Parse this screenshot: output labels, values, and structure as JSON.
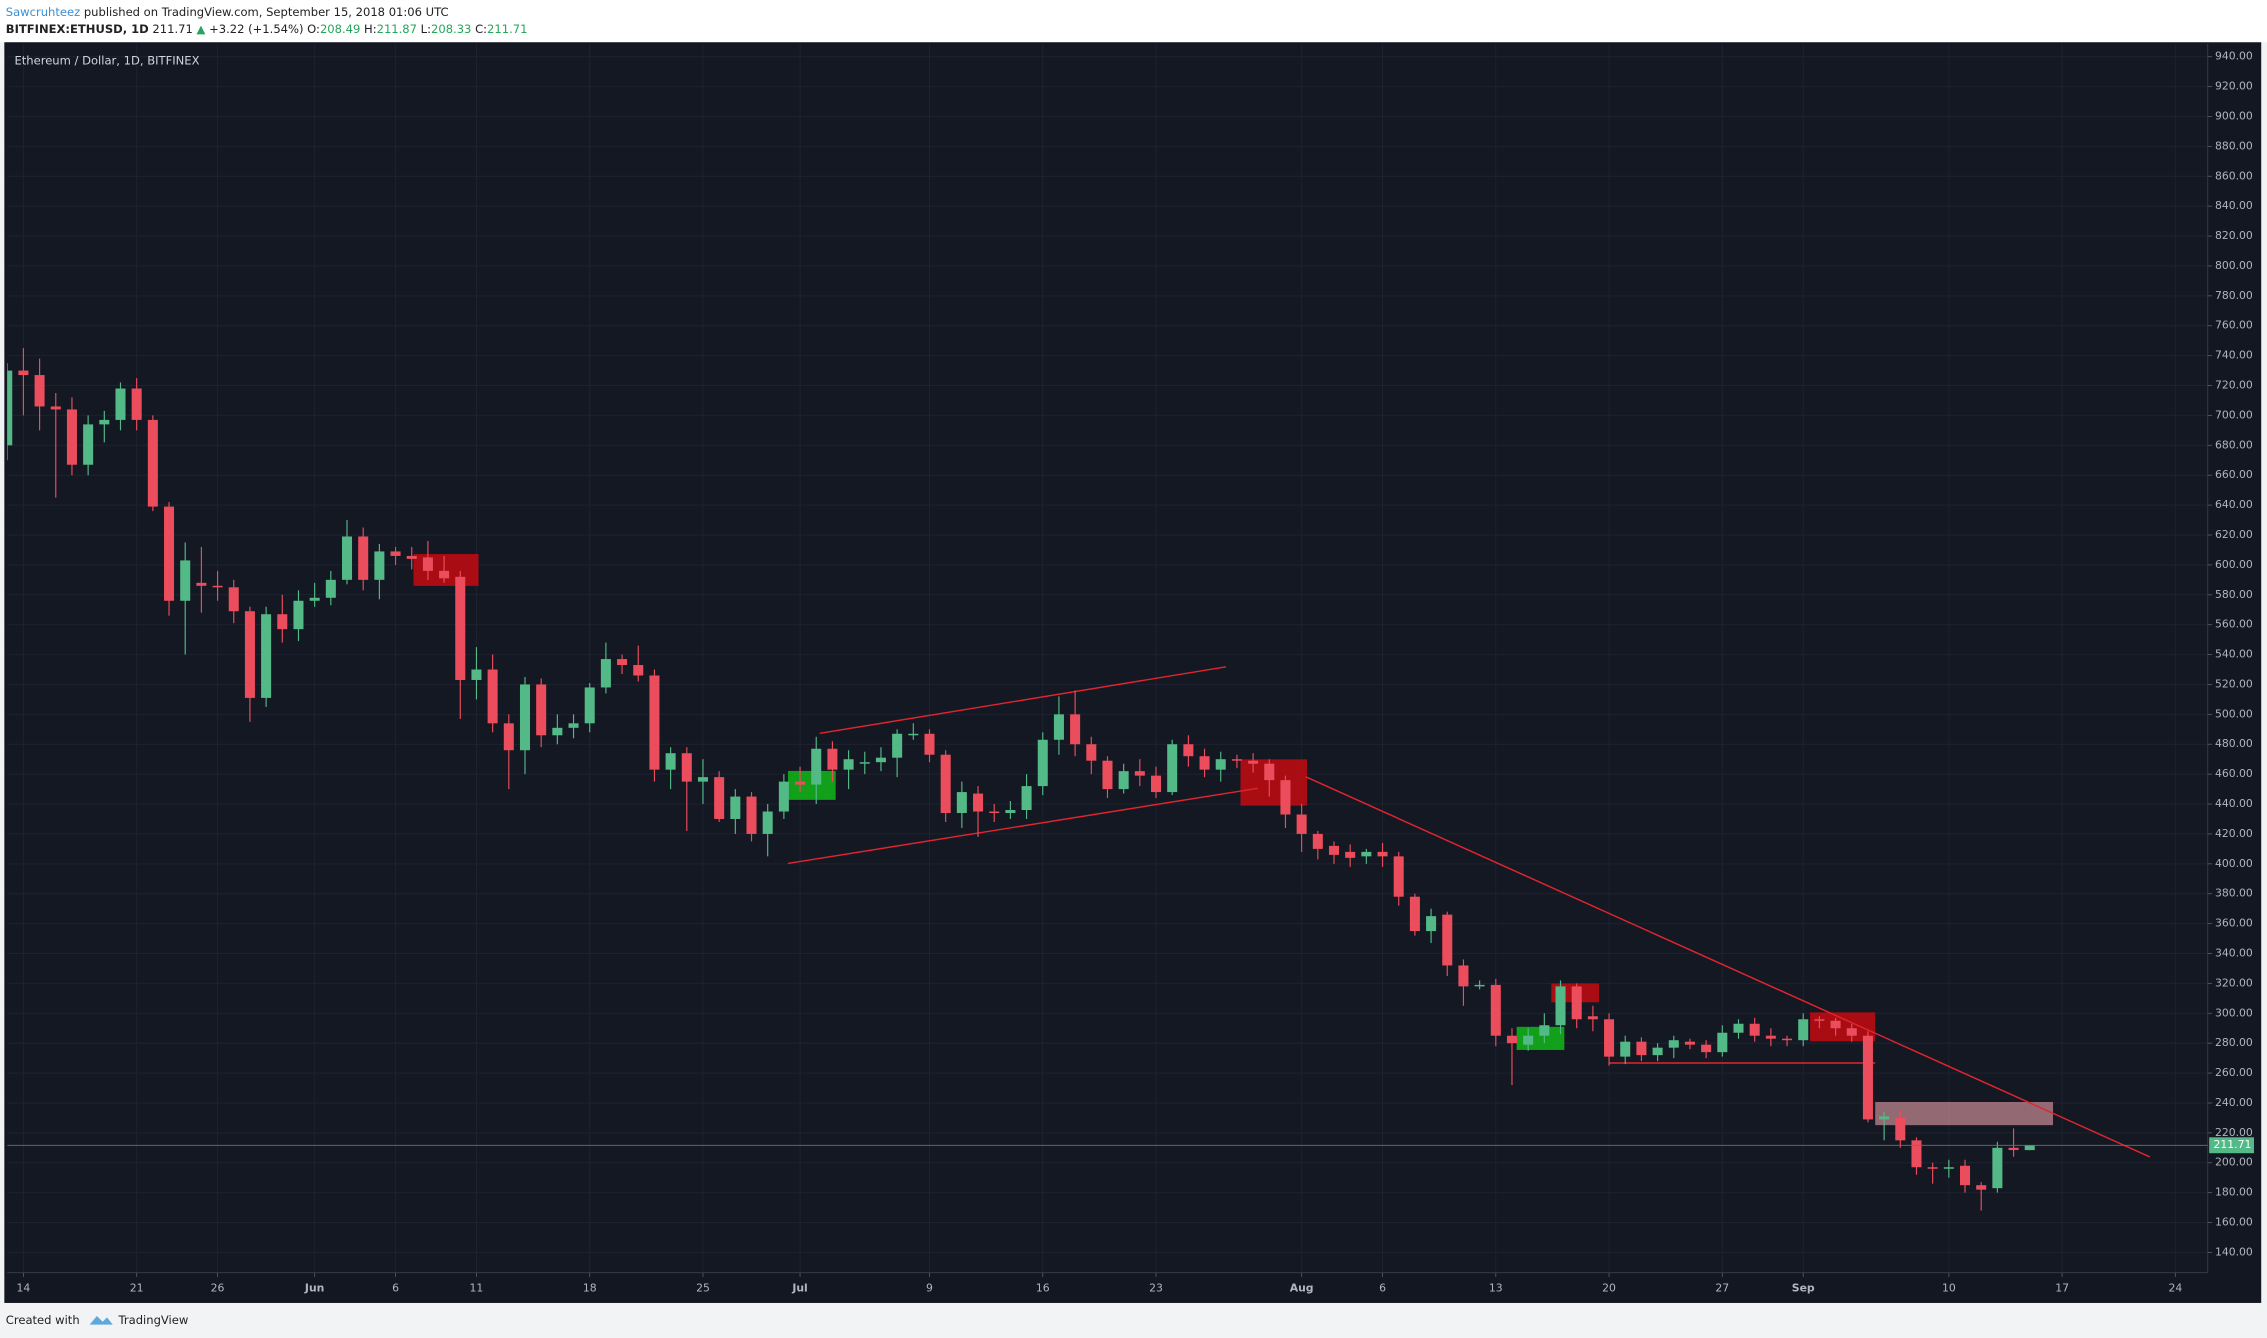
{
  "header": {
    "author": "Sawcruhteez",
    "published": "published on TradingView.com, September 15, 2018 01:06 UTC",
    "symbol": "BITFINEX:ETHUSD, 1D",
    "last": "211.71",
    "direction": "▲",
    "change": "+3.22 (+1.54%)",
    "ohlc": [
      {
        "label": "O:",
        "value": "208.49"
      },
      {
        "label": "H:",
        "value": "211.87"
      },
      {
        "label": "L:",
        "value": "208.33"
      },
      {
        "label": "C:",
        "value": "211.71"
      }
    ]
  },
  "footer": {
    "created": "Created with",
    "brand": "TradingView"
  },
  "chart_data": {
    "type": "candlestick",
    "title": "Ethereum / Dollar, 1D, BITFINEX",
    "colors": {
      "up": "#53b987",
      "down": "#eb4d5c"
    },
    "x": [
      "May 13",
      "May 14",
      "May 15",
      "May 16",
      "May 17",
      "May 18",
      "May 19",
      "May 20",
      "May 21",
      "May 22",
      "May 23",
      "May 24",
      "May 25",
      "May 26",
      "May 27",
      "May 28",
      "May 29",
      "May 30",
      "May 31",
      "Jun 1",
      "Jun 2",
      "Jun 3",
      "Jun 4",
      "Jun 5",
      "Jun 6",
      "Jun 7",
      "Jun 8",
      "Jun 9",
      "Jun 10",
      "Jun 11",
      "Jun 12",
      "Jun 13",
      "Jun 14",
      "Jun 15",
      "Jun 16",
      "Jun 17",
      "Jun 18",
      "Jun 19",
      "Jun 20",
      "Jun 21",
      "Jun 22",
      "Jun 23",
      "Jun 24",
      "Jun 25",
      "Jun 26",
      "Jun 27",
      "Jun 28",
      "Jun 29",
      "Jun 30",
      "Jul 1",
      "Jul 2",
      "Jul 3",
      "Jul 4",
      "Jul 5",
      "Jul 6",
      "Jul 7",
      "Jul 8",
      "Jul 9",
      "Jul 10",
      "Jul 11",
      "Jul 12",
      "Jul 13",
      "Jul 14",
      "Jul 15",
      "Jul 16",
      "Jul 17",
      "Jul 18",
      "Jul 19",
      "Jul 20",
      "Jul 21",
      "Jul 22",
      "Jul 23",
      "Jul 24",
      "Jul 25",
      "Jul 26",
      "Jul 27",
      "Jul 28",
      "Jul 29",
      "Jul 30",
      "Jul 31",
      "Aug 1",
      "Aug 2",
      "Aug 3",
      "Aug 4",
      "Aug 5",
      "Aug 6",
      "Aug 7",
      "Aug 8",
      "Aug 9",
      "Aug 10",
      "Aug 11",
      "Aug 12",
      "Aug 13",
      "Aug 14",
      "Aug 15",
      "Aug 16",
      "Aug 17",
      "Aug 18",
      "Aug 19",
      "Aug 20",
      "Aug 21",
      "Aug 22",
      "Aug 23",
      "Aug 24",
      "Aug 25",
      "Aug 26",
      "Aug 27",
      "Aug 28",
      "Aug 29",
      "Aug 30",
      "Aug 31",
      "Sep 1",
      "Sep 2",
      "Sep 3",
      "Sep 4",
      "Sep 5",
      "Sep 6",
      "Sep 7",
      "Sep 8",
      "Sep 9",
      "Sep 10",
      "Sep 11",
      "Sep 12",
      "Sep 13",
      "Sep 14",
      "Sep 15"
    ],
    "open": [
      680,
      730,
      727,
      706,
      704,
      667,
      694,
      697,
      718,
      697,
      639,
      576,
      588,
      586,
      585,
      569,
      511,
      567,
      557,
      576,
      578,
      590,
      619,
      590,
      609,
      606,
      605,
      596,
      592,
      523,
      530,
      494,
      476,
      520,
      486,
      491,
      494,
      518,
      537,
      533,
      526,
      463,
      474,
      455,
      458,
      430,
      445,
      420,
      435,
      455,
      453,
      477,
      463,
      467,
      468,
      471,
      486,
      487,
      473,
      434,
      447,
      435,
      434,
      436,
      452,
      483,
      500,
      480,
      469,
      450,
      462,
      459,
      448,
      480,
      472,
      463,
      470,
      469,
      467,
      456,
      433,
      420,
      412,
      408,
      405,
      408,
      405,
      378,
      355,
      366,
      332,
      318,
      319,
      285,
      279,
      285,
      292,
      318,
      298,
      296,
      271,
      281,
      272,
      277,
      281,
      279,
      274,
      287,
      293,
      285,
      283,
      282,
      296,
      295,
      290,
      285,
      229,
      230,
      215,
      197,
      196,
      198,
      185,
      183,
      210,
      208.49
    ],
    "high": [
      735,
      745,
      738,
      715,
      712,
      700,
      703,
      722,
      725,
      700,
      642,
      615,
      612,
      596,
      590,
      572,
      572,
      580,
      583,
      588,
      596,
      630,
      625,
      614,
      612,
      612,
      616,
      606,
      596,
      545,
      540,
      500,
      525,
      524,
      500,
      500,
      521,
      548,
      540,
      546,
      530,
      478,
      478,
      470,
      462,
      450,
      448,
      440,
      460,
      465,
      485,
      482,
      476,
      475,
      478,
      490,
      494,
      490,
      476,
      455,
      452,
      440,
      442,
      460,
      488,
      512,
      516,
      485,
      472,
      467,
      470,
      465,
      483,
      486,
      477,
      475,
      473,
      474,
      470,
      459,
      440,
      422,
      415,
      413,
      410,
      414,
      408,
      380,
      370,
      368,
      336,
      322,
      323,
      290,
      290,
      300,
      322,
      320,
      305,
      300,
      285,
      284,
      280,
      285,
      283,
      282,
      292,
      296,
      297,
      290,
      285,
      300,
      298,
      297,
      293,
      288,
      234,
      235,
      217,
      200,
      202,
      202,
      187,
      214,
      223,
      211.87
    ],
    "low": [
      670,
      700,
      690,
      645,
      660,
      660,
      682,
      690,
      690,
      636,
      566,
      540,
      568,
      576,
      561,
      495,
      505,
      548,
      549,
      572,
      573,
      587,
      583,
      577,
      600,
      597,
      590,
      588,
      497,
      510,
      488,
      450,
      460,
      478,
      480,
      484,
      488,
      514,
      527,
      522,
      455,
      450,
      422,
      440,
      428,
      420,
      415,
      405,
      430,
      448,
      440,
      455,
      450,
      460,
      462,
      458,
      483,
      468,
      428,
      424,
      418,
      428,
      430,
      430,
      446,
      473,
      472,
      460,
      444,
      447,
      452,
      444,
      446,
      465,
      458,
      455,
      464,
      461,
      445,
      424,
      408,
      403,
      400,
      398,
      400,
      398,
      372,
      352,
      347,
      325,
      305,
      316,
      278,
      252,
      275,
      280,
      286,
      290,
      288,
      265,
      266,
      268,
      268,
      270,
      276,
      270,
      271,
      283,
      281,
      278,
      278,
      278,
      290,
      285,
      281,
      227,
      215,
      210,
      192,
      186,
      190,
      180,
      168,
      180,
      204,
      208.33
    ],
    "close": [
      730,
      727,
      706,
      704,
      667,
      694,
      697,
      718,
      697,
      639,
      576,
      603,
      586,
      585,
      569,
      511,
      567,
      557,
      576,
      578,
      590,
      619,
      590,
      609,
      606,
      604,
      596,
      591,
      523,
      530,
      494,
      476,
      520,
      486,
      491,
      494,
      518,
      537,
      533,
      526,
      463,
      474,
      455,
      458,
      430,
      445,
      420,
      435,
      455,
      453,
      477,
      463,
      470,
      468,
      471,
      487,
      487,
      473,
      434,
      448,
      435,
      434,
      436,
      452,
      483,
      500,
      480,
      469,
      450,
      462,
      459,
      448,
      480,
      472,
      463,
      470,
      469,
      467,
      456,
      433,
      420,
      410,
      406,
      404,
      408,
      405,
      378,
      355,
      365,
      332,
      318,
      319,
      285,
      280,
      285,
      292,
      318,
      296,
      296,
      271,
      281,
      272,
      277,
      282,
      279,
      274,
      287,
      293,
      285,
      283,
      282,
      296,
      295,
      290,
      285,
      229,
      231,
      215,
      197,
      196,
      197,
      185,
      182,
      210,
      208.49,
      211.71
    ],
    "xlim": [
      "May 13",
      "Sep 26"
    ],
    "xticks": [
      {
        "value": "May 14",
        "label": "14"
      },
      {
        "value": "May 21",
        "label": "21"
      },
      {
        "value": "May 26",
        "label": "26"
      },
      {
        "value": "Jun 1",
        "label": "Jun"
      },
      {
        "value": "Jun 6",
        "label": "6"
      },
      {
        "value": "Jun 11",
        "label": "11"
      },
      {
        "value": "Jun 18",
        "label": "18"
      },
      {
        "value": "Jun 25",
        "label": "25"
      },
      {
        "value": "Jul 1",
        "label": "Jul"
      },
      {
        "value": "Jul 9",
        "label": "9"
      },
      {
        "value": "Jul 16",
        "label": "16"
      },
      {
        "value": "Jul 23",
        "label": "23"
      },
      {
        "value": "Aug 1",
        "label": "Aug"
      },
      {
        "value": "Aug 6",
        "label": "6"
      },
      {
        "value": "Aug 13",
        "label": "13"
      },
      {
        "value": "Aug 20",
        "label": "20"
      },
      {
        "value": "Aug 27",
        "label": "27"
      },
      {
        "value": "Sep 1",
        "label": "Sep"
      },
      {
        "value": "Sep 10",
        "label": "10"
      },
      {
        "value": "Sep 17",
        "label": "17"
      },
      {
        "value": "Sep 24",
        "label": "24"
      }
    ],
    "ylim": [
      126.5,
      948.7
    ],
    "yticks": [
      {
        "value": 140,
        "label": "140.00"
      },
      {
        "value": 160,
        "label": "160.00"
      },
      {
        "value": 180,
        "label": "180.00"
      },
      {
        "value": 200,
        "label": "200.00"
      },
      {
        "value": 220,
        "label": "220.00"
      },
      {
        "value": 240,
        "label": "240.00"
      },
      {
        "value": 260,
        "label": "260.00"
      },
      {
        "value": 280,
        "label": "280.00"
      },
      {
        "value": 300,
        "label": "300.00"
      },
      {
        "value": 320,
        "label": "320.00"
      },
      {
        "value": 340,
        "label": "340.00"
      },
      {
        "value": 360,
        "label": "360.00"
      },
      {
        "value": 380,
        "label": "380.00"
      },
      {
        "value": 400,
        "label": "400.00"
      },
      {
        "value": 420,
        "label": "420.00"
      },
      {
        "value": 440,
        "label": "440.00"
      },
      {
        "value": 460,
        "label": "460.00"
      },
      {
        "value": 480,
        "label": "480.00"
      },
      {
        "value": 500,
        "label": "500.00"
      },
      {
        "value": 520,
        "label": "520.00"
      },
      {
        "value": 540,
        "label": "540.00"
      },
      {
        "value": 560,
        "label": "560.00"
      },
      {
        "value": 580,
        "label": "580.00"
      },
      {
        "value": 600,
        "label": "600.00"
      },
      {
        "value": 620,
        "label": "620.00"
      },
      {
        "value": 640,
        "label": "640.00"
      },
      {
        "value": 660,
        "label": "660.00"
      },
      {
        "value": 680,
        "label": "680.00"
      },
      {
        "value": 700,
        "label": "700.00"
      },
      {
        "value": 720,
        "label": "720.00"
      },
      {
        "value": 740,
        "label": "740.00"
      },
      {
        "value": 760,
        "label": "760.00"
      },
      {
        "value": 780,
        "label": "780.00"
      },
      {
        "value": 800,
        "label": "800.00"
      },
      {
        "value": 820,
        "label": "820.00"
      },
      {
        "value": 840,
        "label": "840.00"
      },
      {
        "value": 860,
        "label": "860.00"
      },
      {
        "value": 880,
        "label": "880.00"
      },
      {
        "value": 900,
        "label": "900.00"
      },
      {
        "value": 920,
        "label": "920.00"
      },
      {
        "value": 940,
        "label": "940.00"
      }
    ],
    "grid": true
  }
}
